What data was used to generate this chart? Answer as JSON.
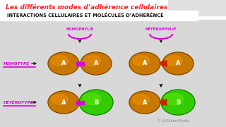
{
  "bg_color": "#ffffff",
  "title_color": "#ff2020",
  "title_text": "Les différents modes d’adhérence cellulaires",
  "subtitle_text": "INTERACTIONS CELLULAIRES ET MOLÉCULES D’ADHERÉNCE",
  "subtitle_color": "#111111",
  "cell_orange": "#c87800",
  "cell_orange_edge": "#7a4a00",
  "cell_green": "#33cc00",
  "cell_green_edge": "#1a7700",
  "linker_color": "#dd00dd",
  "arrow_black": "#111111",
  "arrow_red": "#cc2200",
  "homophylie_color": "#dd00dd",
  "heterophylie_color": "#dd00dd",
  "row_label_color": "#dd00dd",
  "watermark_color": "#888888",
  "watermark": "M.Gilbert/Fardis",
  "homophylie_label": "HOMOPHYLIE",
  "heterophylie_label": "HÉTÉROPHYLIE",
  "homotype_label": "HOMOTYPE",
  "heterotype_label": "HÉTÉROTYPE",
  "toolbar_color": "#dddddd"
}
